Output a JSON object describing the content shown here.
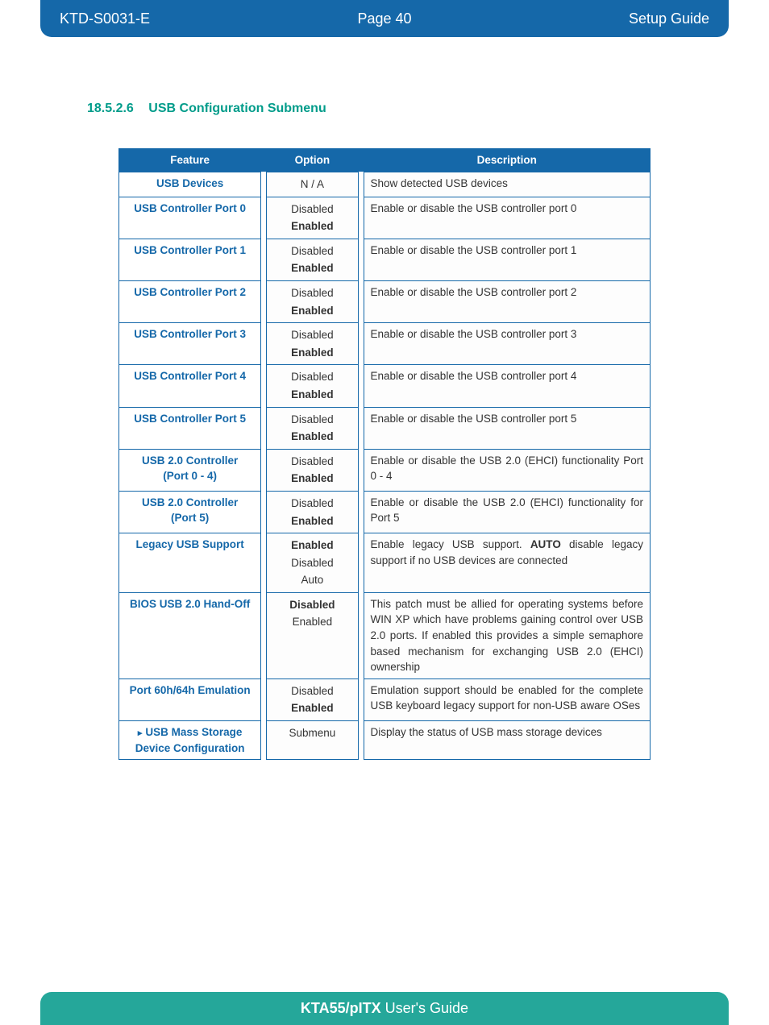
{
  "header": {
    "doc_id": "KTD-S0031-E",
    "page_label": "Page 40",
    "doc_type": "Setup Guide"
  },
  "section": {
    "number": "18.5.2.6",
    "title": "USB Configuration Submenu"
  },
  "table": {
    "headers": {
      "feature": "Feature",
      "option": "Option",
      "description": "Description"
    },
    "rows": [
      {
        "feature_lines": [
          "USB Devices"
        ],
        "options": [
          {
            "text": "N / A",
            "bold": false
          }
        ],
        "description_pre": "Show detected USB devices"
      },
      {
        "feature_lines": [
          "USB Controller Port 0"
        ],
        "options": [
          {
            "text": "Disabled",
            "bold": false
          },
          {
            "text": "Enabled",
            "bold": true
          }
        ],
        "description_pre": "Enable or disable the USB controller port 0"
      },
      {
        "feature_lines": [
          "USB Controller Port 1"
        ],
        "options": [
          {
            "text": "Disabled",
            "bold": false
          },
          {
            "text": "Enabled",
            "bold": true
          }
        ],
        "description_pre": "Enable or disable the USB controller port 1"
      },
      {
        "feature_lines": [
          "USB Controller Port 2"
        ],
        "options": [
          {
            "text": "Disabled",
            "bold": false
          },
          {
            "text": "Enabled",
            "bold": true
          }
        ],
        "description_pre": "Enable or disable the USB controller port 2"
      },
      {
        "feature_lines": [
          "USB Controller Port 3"
        ],
        "options": [
          {
            "text": "Disabled",
            "bold": false
          },
          {
            "text": "Enabled",
            "bold": true
          }
        ],
        "description_pre": "Enable or disable the USB controller port 3"
      },
      {
        "feature_lines": [
          "USB Controller Port 4"
        ],
        "options": [
          {
            "text": "Disabled",
            "bold": false
          },
          {
            "text": "Enabled",
            "bold": true
          }
        ],
        "description_pre": "Enable or disable the USB controller port 4"
      },
      {
        "feature_lines": [
          "USB Controller Port 5"
        ],
        "options": [
          {
            "text": "Disabled",
            "bold": false
          },
          {
            "text": "Enabled",
            "bold": true
          }
        ],
        "description_pre": "Enable or disable the USB controller port 5"
      },
      {
        "feature_lines": [
          "USB 2.0 Controller",
          "(Port 0 - 4)"
        ],
        "options": [
          {
            "text": "Disabled",
            "bold": false
          },
          {
            "text": "Enabled",
            "bold": true
          }
        ],
        "description_pre": "Enable or disable the USB 2.0 (EHCI) functionality Port 0 - 4"
      },
      {
        "feature_lines": [
          "USB 2.0 Controller",
          "(Port 5)"
        ],
        "options": [
          {
            "text": "Disabled",
            "bold": false
          },
          {
            "text": "Enabled",
            "bold": true
          }
        ],
        "description_pre": "Enable or disable the USB 2.0 (EHCI) functionality for Port 5"
      },
      {
        "feature_lines": [
          "Legacy USB Support"
        ],
        "options": [
          {
            "text": "Enabled",
            "bold": true
          },
          {
            "text": "Disabled",
            "bold": false
          },
          {
            "text": "Auto",
            "bold": false
          }
        ],
        "description_pre": "Enable legacy USB support. ",
        "description_bold": "AUTO",
        "description_post": " disable legacy support if no USB devices are connected"
      },
      {
        "feature_lines": [
          "BIOS USB 2.0 Hand-Off"
        ],
        "options": [
          {
            "text": "Disabled",
            "bold": true
          },
          {
            "text": "Enabled",
            "bold": false
          }
        ],
        "description_pre": "This patch must be allied for operating systems before WIN XP which have problems gaining control over USB 2.0 ports. If enabled this provides a simple semaphore based mecha­nism for exchanging USB 2.0 (EHCI) ownership"
      },
      {
        "feature_lines": [
          "Port 60h/64h Emulation"
        ],
        "options": [
          {
            "text": "Disabled",
            "bold": false
          },
          {
            "text": "Enabled",
            "bold": true
          }
        ],
        "description_pre": "Emulation support should be enabled for the complete USB keyboard legacy support for non-USB aware OSes"
      },
      {
        "feature_lines": [
          "USB Mass Storage",
          "Device Configuration"
        ],
        "feature_arrow": true,
        "options": [
          {
            "text": "Submenu",
            "bold": false
          }
        ],
        "description_pre": "Display the status of USB mass storage devices"
      }
    ]
  },
  "footer": {
    "product": "KTA55/pITX",
    "label": " User's Guide"
  }
}
